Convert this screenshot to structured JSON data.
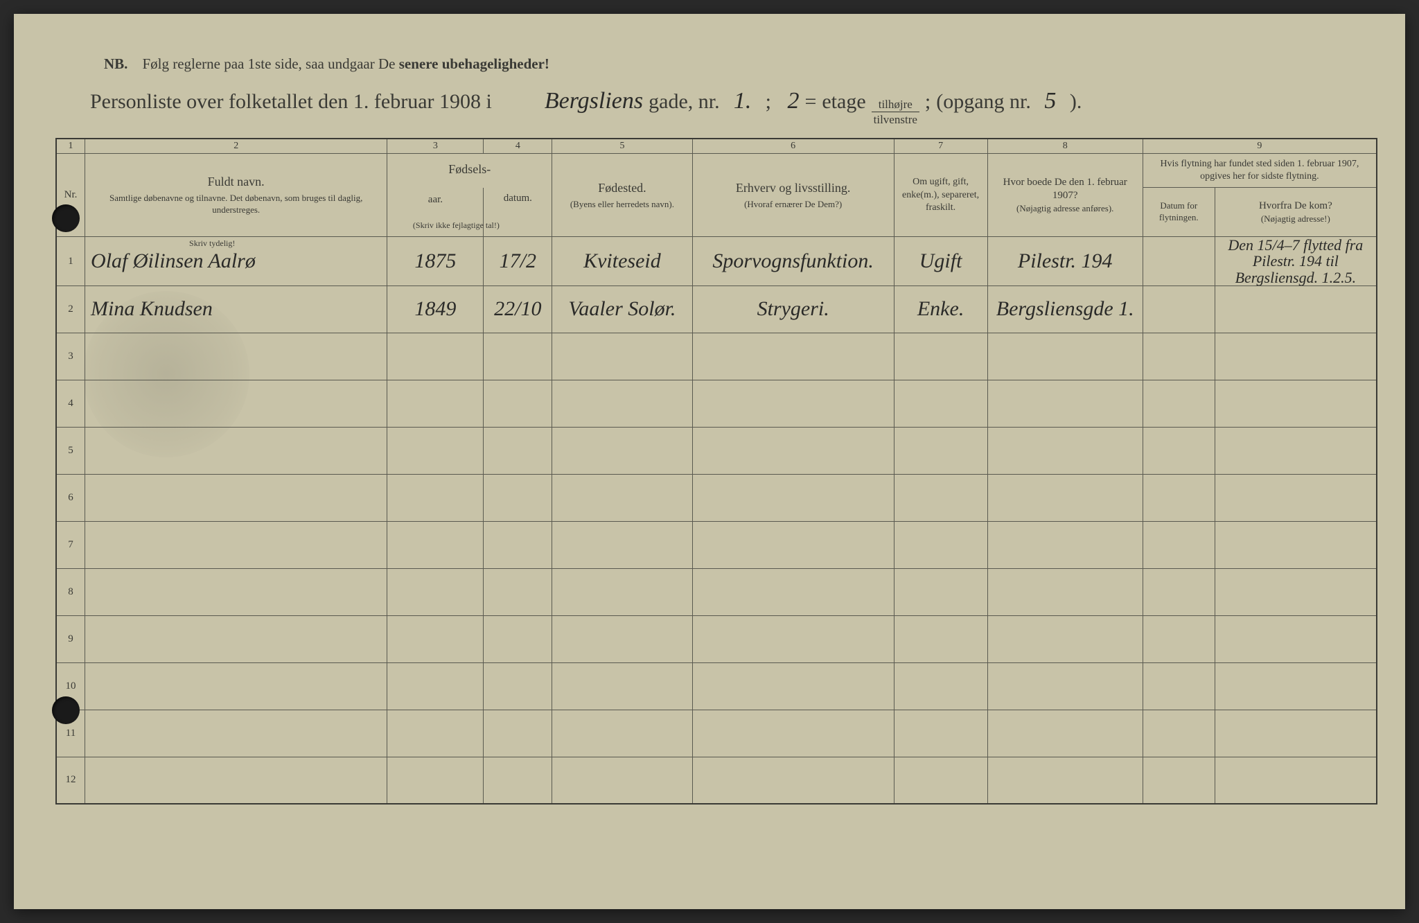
{
  "colors": {
    "page_bg": "#c8c3a8",
    "ink_print": "#3a3a35",
    "ink_hand": "#2a2a28",
    "check_blue": "#4a5aa0",
    "border": "#3a3a35"
  },
  "header": {
    "nb_prefix": "NB.",
    "nb_text": "Følg reglerne paa 1ste side, saa undgaar De",
    "nb_bold": "senere ubehageligheder!",
    "title_prefix": "Personliste over folketallet den 1. februar 1908 i",
    "street_hand": "Bergsliens",
    "street_suffix": "gade, nr.",
    "nr_hand": "1.",
    "semicolon": ";",
    "etage_hand": "2",
    "etage_sep": "=",
    "etage_label": "etage",
    "side_top": "tilhøjre",
    "side_bot": "tilvenstre",
    "side_sep": ";",
    "opgang_prefix": "(opgang nr.",
    "opgang_hand": "5",
    "opgang_suffix": ")."
  },
  "column_numbers": [
    "1",
    "2",
    "3",
    "4",
    "5",
    "6",
    "7",
    "8",
    "9"
  ],
  "columns": {
    "nr": "Nr.",
    "name_main": "Fuldt navn.",
    "name_sub": "Samtlige døbenavne og tilnavne. Det døbenavn, som bruges til daglig, understreges.",
    "fods_group": "Fødsels-",
    "aar": "aar.",
    "datum": "datum.",
    "fods_note": "(Skriv ikke fejlagtige tal!)",
    "place_main": "Fødested.",
    "place_sub": "(Byens eller herredets navn).",
    "occ_main": "Erhverv og livsstilling.",
    "occ_sub": "(Hvoraf ernærer De Dem?)",
    "status_main": "Om ugift, gift, enke(m.), separeret, fraskilt.",
    "prev_main": "Hvor boede De den 1. februar 1907?",
    "prev_sub": "(Nøjagtig adresse anføres).",
    "move_group": "Hvis flytning har fundet sted siden 1. februar 1907, opgives her for sidste flytning.",
    "move_date": "Datum for flytningen.",
    "move_from_main": "Hvorfra De kom?",
    "move_from_sub": "(Nøjagtig adresse!)",
    "skriv_tydelig": "Skriv tydelig!"
  },
  "rows": [
    {
      "n": "1",
      "check": true,
      "name": "Olaf Øilinsen Aalrø",
      "year": "1875",
      "date": "17/2",
      "place": "Kviteseid",
      "occ": "Sporvognsfunktion.",
      "status": "Ugift",
      "prev": "Pilestr. 194",
      "movedate": "",
      "movefrom": "Den 15/4–7 flytted fra Pilestr. 194 til Bergsliensgd. 1.2.5."
    },
    {
      "n": "2",
      "check": true,
      "name": "Mina Knudsen",
      "year": "1849",
      "date": "22/10",
      "place": "Vaaler Solør.",
      "occ": "Strygeri.",
      "status": "Enke.",
      "prev": "Bergsliensgde 1.",
      "movedate": "",
      "movefrom": ""
    },
    {
      "n": "3"
    },
    {
      "n": "4"
    },
    {
      "n": "5"
    },
    {
      "n": "6"
    },
    {
      "n": "7"
    },
    {
      "n": "8"
    },
    {
      "n": "9"
    },
    {
      "n": "10"
    },
    {
      "n": "11"
    },
    {
      "n": "12"
    }
  ]
}
